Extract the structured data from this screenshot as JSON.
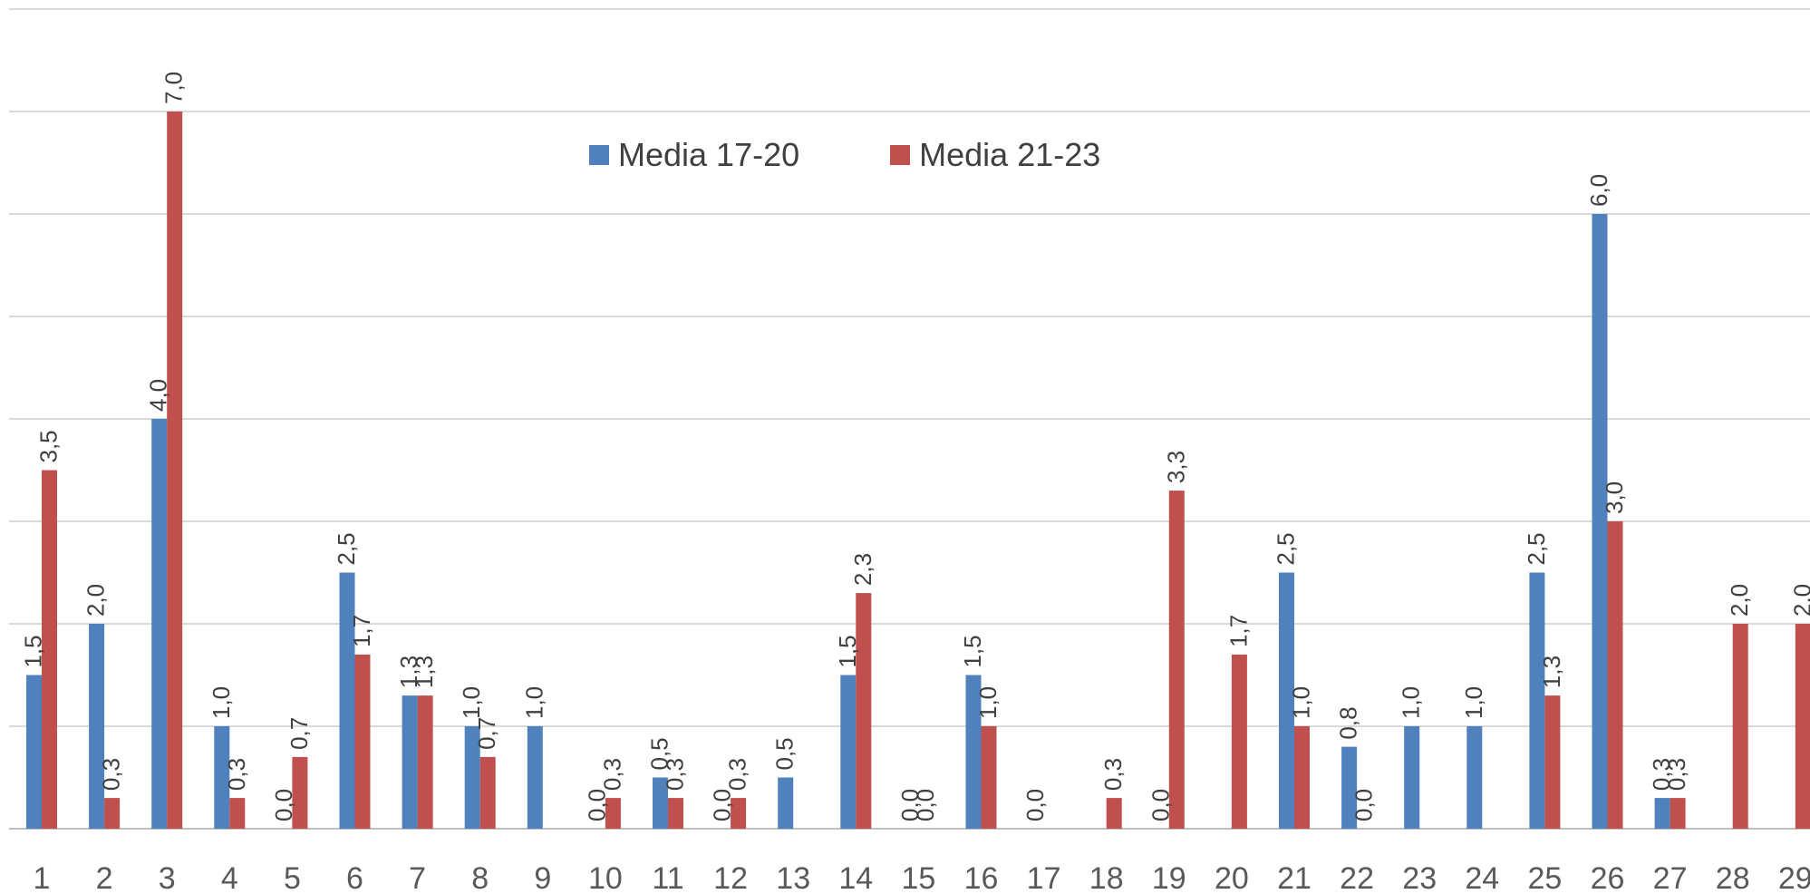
{
  "chart_data": {
    "type": "bar",
    "categories": [
      "1",
      "2",
      "3",
      "4",
      "5",
      "6",
      "7",
      "8",
      "9",
      "10",
      "11",
      "12",
      "13",
      "14",
      "15",
      "16",
      "17",
      "18",
      "19",
      "20",
      "21",
      "22",
      "23",
      "24",
      "25",
      "26",
      "27",
      "28",
      "29"
    ],
    "series": [
      {
        "name": "Media 17-20",
        "color": "#4f81bd",
        "values": [
          1.5,
          2.0,
          4.0,
          1.0,
          0.0,
          2.5,
          1.3,
          1.0,
          1.0,
          0.0,
          0.5,
          0.0,
          0.5,
          1.5,
          0.0,
          1.5,
          0.0,
          null,
          0.0,
          null,
          2.5,
          0.8,
          1.0,
          1.0,
          2.5,
          6.0,
          0.3,
          null,
          null
        ],
        "labels": [
          "1,5",
          "2,0",
          "4,0",
          "1,0",
          "0,0",
          "2,5",
          "1,3",
          "1,0",
          "1,0",
          "0,0",
          "0,5",
          "0,0",
          "0,5",
          "1,5",
          "0,0",
          "1,5",
          "0,0",
          null,
          "0,0",
          null,
          "2,5",
          "0,8",
          "1,0",
          "1,0",
          "2,5",
          "6,0",
          "0,3",
          null,
          null
        ]
      },
      {
        "name": "Media 21-23",
        "color": "#c0504d",
        "values": [
          3.5,
          0.3,
          7.0,
          0.3,
          0.7,
          1.7,
          1.3,
          0.7,
          null,
          0.3,
          0.3,
          0.3,
          null,
          2.3,
          0.0,
          1.0,
          null,
          0.3,
          3.3,
          1.7,
          1.0,
          0.0,
          null,
          null,
          1.3,
          3.0,
          0.3,
          2.0,
          2.0
        ],
        "labels": [
          "3,5",
          "0,3",
          "7,0",
          "0,3",
          "0,7",
          "1,7",
          "1,3",
          "0,7",
          null,
          "0,3",
          "0,3",
          "0,3",
          null,
          "2,3",
          "0,0",
          "1,0",
          null,
          "0,3",
          "3,3",
          "1,7",
          "1,0",
          "0,0",
          null,
          null,
          "1,3",
          "3,0",
          "0,3",
          "2,0",
          "2,0"
        ]
      }
    ],
    "ylim": [
      0,
      8
    ],
    "grid": true,
    "legend_position": "top-center"
  }
}
